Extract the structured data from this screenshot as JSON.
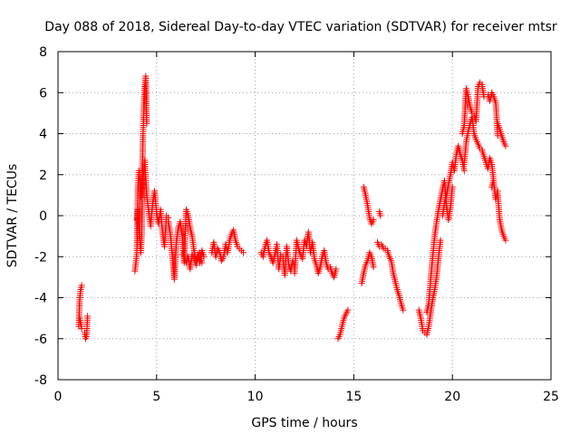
{
  "chart_data": {
    "type": "scatter",
    "title": "Day 088 of 2018, Sidereal Day-to-day VTEC variation (SDTVAR) for receiver mtsr",
    "xlabel": "GPS time / hours",
    "ylabel": "SDTVAR / TECUs",
    "xlim": [
      0,
      25
    ],
    "ylim": [
      -8,
      8
    ],
    "xticks": [
      "0",
      "5",
      "10",
      "15",
      "20",
      "25"
    ],
    "yticks": [
      "-8",
      "-6",
      "-4",
      "-2",
      "0",
      "2",
      "4",
      "6",
      "8"
    ],
    "grid": true,
    "marker": "plus",
    "color": "#ff0000",
    "segments": [
      {
        "x": [
          1.05,
          1.1,
          1.15,
          1.2
        ],
        "y": [
          -5.4,
          -4.1,
          -3.6,
          -3.4
        ]
      },
      {
        "x": [
          1.1,
          1.2
        ],
        "y": [
          -5.0,
          -5.5
        ]
      },
      {
        "x": [
          1.35,
          1.4,
          1.45,
          1.5
        ],
        "y": [
          -5.7,
          -6.0,
          -5.9,
          -4.9
        ]
      },
      {
        "x": [
          3.9,
          3.95,
          4.0,
          4.05,
          4.1,
          4.15,
          4.2,
          4.25
        ],
        "y": [
          -2.7,
          -2.3,
          -1.8,
          1.2,
          2.2,
          1.6,
          0.9,
          1.8
        ]
      },
      {
        "x": [
          4.0,
          4.05,
          4.1,
          4.15,
          4.2,
          4.25,
          4.3,
          4.35,
          4.4,
          4.45,
          4.5
        ],
        "y": [
          -0.2,
          0.3,
          -0.5,
          -1.2,
          -1.8,
          -0.8,
          3.5,
          5.2,
          6.3,
          6.8,
          4.5
        ]
      },
      {
        "x": [
          4.3,
          4.4,
          4.5,
          4.6,
          4.7,
          4.8,
          4.9,
          5.0,
          5.1,
          5.2,
          5.3,
          5.4,
          5.5,
          5.6
        ],
        "y": [
          1.5,
          2.7,
          1.0,
          0.2,
          -0.5,
          0.6,
          1.2,
          0.1,
          -0.4,
          0.3,
          -0.8,
          -1.5,
          0.0,
          -0.1
        ]
      },
      {
        "x": [
          5.6,
          5.7,
          5.8,
          5.9,
          6.0,
          6.1,
          6.2,
          6.3,
          6.4,
          6.5,
          6.6,
          6.7,
          6.8,
          6.9,
          7.0,
          7.1,
          7.2,
          7.3,
          7.4
        ],
        "y": [
          -0.3,
          -0.9,
          -2.0,
          -3.1,
          -1.3,
          -0.6,
          -0.3,
          -1.0,
          -2.3,
          0.3,
          0.0,
          -0.6,
          -1.0,
          -1.7,
          -2.2,
          -1.9,
          -2.3,
          -1.7,
          -2.0
        ]
      },
      {
        "x": [
          6.3,
          6.4,
          6.5,
          6.6,
          6.7,
          6.8,
          6.9,
          7.0,
          7.1,
          7.2,
          7.3
        ],
        "y": [
          -1.9,
          -2.0,
          -2.3,
          -2.0,
          -2.6,
          -1.9,
          -2.1,
          -2.4,
          -2.0,
          -1.8,
          -2.3
        ]
      },
      {
        "x": [
          7.8,
          7.9,
          8.0,
          8.1,
          8.2,
          8.3,
          8.4,
          8.5,
          8.6,
          8.7,
          8.8,
          8.9,
          9.0,
          9.1,
          9.4
        ],
        "y": [
          -1.8,
          -1.3,
          -2.0,
          -1.6,
          -1.8,
          -2.2,
          -2.0,
          -1.4,
          -1.8,
          -1.2,
          -0.9,
          -0.7,
          -1.2,
          -1.5,
          -1.8
        ]
      },
      {
        "x": [
          10.3,
          10.4,
          10.5,
          10.6,
          10.7,
          10.8,
          10.9,
          11.0,
          11.1,
          11.2,
          11.3,
          11.4,
          11.5,
          11.6,
          11.7,
          11.8,
          11.9,
          12.0
        ],
        "y": [
          -1.8,
          -2.0,
          -1.5,
          -1.2,
          -1.8,
          -2.0,
          -2.3,
          -1.9,
          -1.4,
          -2.6,
          -1.9,
          -2.0,
          -2.9,
          -1.5,
          -2.4,
          -2.7,
          -2.2,
          -2.5
        ]
      },
      {
        "x": [
          12.0,
          12.1,
          12.2,
          12.3,
          12.4,
          12.5,
          12.6,
          12.7,
          12.8,
          12.9,
          13.0,
          13.1,
          13.2,
          13.3,
          13.4,
          13.5,
          13.6,
          13.7
        ],
        "y": [
          -2.8,
          -1.2,
          -1.6,
          -1.9,
          -2.1,
          -1.2,
          -1.5,
          -0.8,
          -1.8,
          -1.3,
          -2.1,
          -2.4,
          -2.8,
          -2.5,
          -2.0,
          -1.7,
          -2.3,
          -2.6
        ]
      },
      {
        "x": [
          13.8,
          13.9,
          14.0,
          14.1
        ],
        "y": [
          -2.5,
          -2.8,
          -3.0,
          -2.6
        ]
      },
      {
        "x": [
          14.2,
          14.3,
          14.4,
          14.5,
          14.6,
          14.7
        ],
        "y": [
          -6.0,
          -5.8,
          -5.4,
          -5.0,
          -4.8,
          -4.6
        ]
      },
      {
        "x": [
          15.4,
          15.5,
          15.6,
          15.7,
          15.8,
          15.9,
          16.0
        ],
        "y": [
          -3.3,
          -2.8,
          -2.4,
          -2.2,
          -1.8,
          -2.0,
          -2.5
        ]
      },
      {
        "x": [
          15.5,
          15.6,
          15.7,
          15.8,
          15.9,
          16.0
        ],
        "y": [
          1.4,
          1.0,
          0.5,
          -0.1,
          -0.4,
          -0.2
        ]
      },
      {
        "x": [
          16.3,
          16.35
        ],
        "y": [
          0.2,
          0.0
        ]
      },
      {
        "x": [
          16.2,
          16.3,
          16.4,
          16.5,
          16.6,
          16.7,
          16.8,
          16.9,
          17.0,
          17.1,
          17.2,
          17.3,
          17.4,
          17.5
        ],
        "y": [
          -1.3,
          -1.5,
          -1.4,
          -1.6,
          -1.6,
          -1.7,
          -2.0,
          -2.2,
          -2.8,
          -3.2,
          -3.6,
          -3.9,
          -4.3,
          -4.6
        ]
      },
      {
        "x": [
          18.3,
          18.4,
          18.5,
          18.6,
          18.7,
          18.8,
          18.9,
          19.0,
          19.1,
          19.2,
          19.3,
          19.4
        ],
        "y": [
          -4.6,
          -5.0,
          -5.6,
          -5.7,
          -5.8,
          -5.4,
          -4.7,
          -4.1,
          -3.6,
          -3.0,
          -2.0,
          -1.2
        ]
      },
      {
        "x": [
          18.7,
          18.8,
          18.9,
          19.0,
          19.1,
          19.2,
          19.3,
          19.4,
          19.5,
          19.6,
          19.7,
          19.8,
          19.9,
          20.0
        ],
        "y": [
          -4.7,
          -4.3,
          -3.1,
          -2.0,
          -1.0,
          -0.3,
          0.3,
          0.8,
          1.3,
          1.7,
          0.5,
          -0.2,
          0.4,
          1.4
        ]
      },
      {
        "x": [
          19.5,
          19.6,
          19.7,
          19.8,
          19.9,
          20.0,
          20.1,
          20.2,
          20.3,
          20.4,
          20.5,
          20.6
        ],
        "y": [
          0.0,
          0.6,
          1.0,
          1.5,
          2.0,
          2.6,
          2.2,
          3.0,
          3.4,
          3.0,
          2.7,
          2.2
        ]
      },
      {
        "x": [
          20.6,
          20.7,
          20.8,
          20.9,
          21.0,
          21.1,
          21.2,
          21.3,
          21.4,
          21.5,
          21.6,
          21.7,
          21.8,
          21.9,
          22.0,
          22.1,
          22.2,
          22.3
        ],
        "y": [
          2.5,
          3.6,
          4.1,
          4.5,
          4.8,
          4.0,
          3.7,
          3.5,
          3.3,
          3.2,
          2.9,
          2.6,
          2.3,
          2.8,
          2.5,
          1.6,
          0.8,
          1.2
        ]
      },
      {
        "x": [
          20.5,
          20.6,
          20.7,
          20.8,
          20.9,
          21.0,
          21.1,
          21.2,
          21.3,
          21.4,
          21.5,
          21.6
        ],
        "y": [
          4.0,
          4.4,
          6.2,
          5.8,
          5.3,
          5.0,
          4.9,
          4.6,
          6.3,
          6.5,
          6.4,
          5.8
        ]
      },
      {
        "x": [
          21.8,
          21.9,
          22.0,
          22.1,
          22.2,
          22.3
        ],
        "y": [
          5.9,
          5.6,
          6.0,
          5.8,
          5.5,
          3.9
        ]
      },
      {
        "x": [
          22.3,
          22.4,
          22.5,
          22.6,
          22.7
        ],
        "y": [
          4.5,
          4.2,
          3.9,
          3.6,
          3.4
        ]
      },
      {
        "x": [
          22.3,
          22.4,
          22.5,
          22.6,
          22.7
        ],
        "y": [
          1.0,
          -0.2,
          -0.7,
          -1.0,
          -1.2
        ]
      },
      {
        "x": [
          22.0,
          22.05
        ],
        "y": [
          1.4,
          1.6
        ]
      }
    ]
  }
}
